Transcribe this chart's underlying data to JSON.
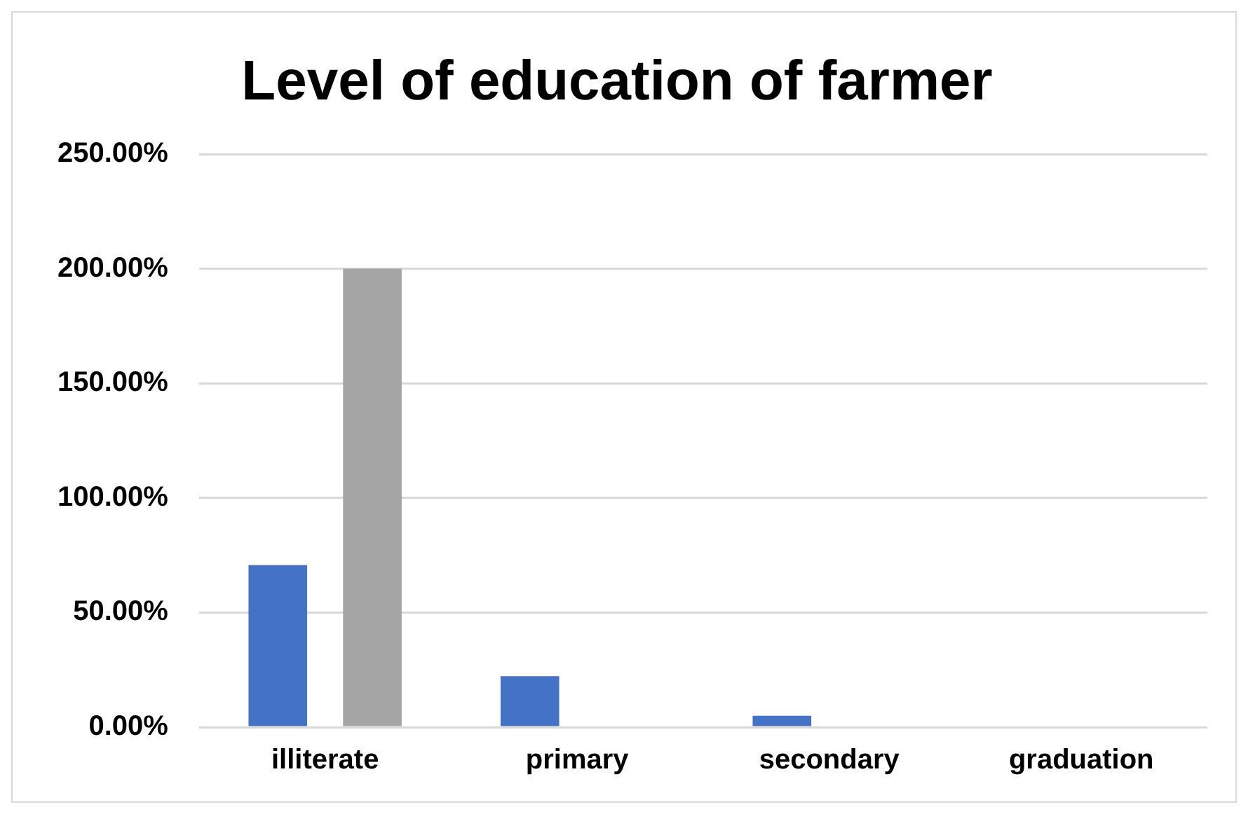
{
  "chart_data": {
    "type": "bar",
    "title": "Level of education of farmer",
    "categories": [
      "illiterate",
      "primary",
      "secondary",
      "graduation"
    ],
    "series": [
      {
        "color": "#4472c4",
        "values": [
          0.707,
          0.222,
          0.05,
          0
        ]
      },
      {
        "color": "#a5a5a5",
        "values": [
          2.0,
          0,
          0,
          0
        ]
      }
    ],
    "ylim": [
      0,
      2.5
    ],
    "yticks": [
      {
        "value": 0,
        "label": "0.00%"
      },
      {
        "value": 0.5,
        "label": "50.00%"
      },
      {
        "value": 1,
        "label": "100.00%"
      },
      {
        "value": 1.5,
        "label": "150.00%"
      },
      {
        "value": 2,
        "label": "200.00%"
      },
      {
        "value": 2.5,
        "label": "250.00%"
      }
    ],
    "grid": "y",
    "legend": false
  }
}
